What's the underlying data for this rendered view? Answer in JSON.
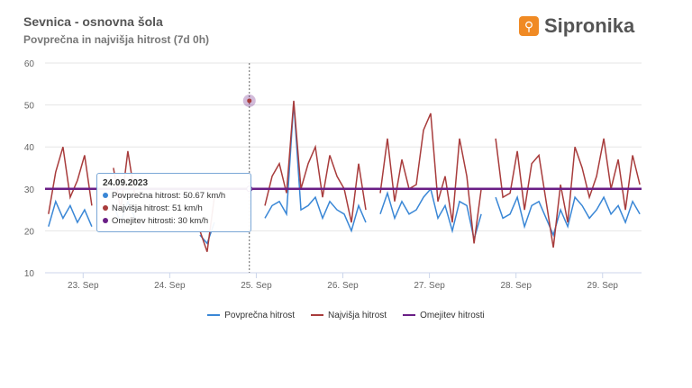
{
  "header": {
    "title": "Sevnica - osnovna šola",
    "subtitle": "Povprečna in najvišja hitrost (7d 0h)",
    "brand": "Sipronika"
  },
  "tooltip": {
    "date": "24.09.2023",
    "avg": "Povprečna hitrost: 50.67 km/h",
    "max": "Najvišja hitrost: 51 km/h",
    "limit": "Omejitev hitrosti: 30 km/h"
  },
  "chart_data": {
    "type": "line",
    "title": "Povprečna in najvišja hitrost (7d 0h)",
    "xlabel": "",
    "ylabel": "",
    "ylim": [
      10,
      60
    ],
    "yticks": [
      10,
      20,
      30,
      40,
      50,
      60
    ],
    "xlim": [
      22.56,
      29.45
    ],
    "xticks": [
      {
        "v": 23,
        "label": "23. Sep"
      },
      {
        "v": 24,
        "label": "24. Sep"
      },
      {
        "v": 25,
        "label": "25. Sep"
      },
      {
        "v": 26,
        "label": "26. Sep"
      },
      {
        "v": 27,
        "label": "27. Sep"
      },
      {
        "v": 28,
        "label": "28. Sep"
      },
      {
        "v": 29,
        "label": "29. Sep"
      }
    ],
    "x_start": 22.6,
    "x_step_days": 0.0833,
    "series": [
      {
        "name": "Povprečna hitrost",
        "color": "#3a87d6",
        "values": [
          21,
          27,
          23,
          26,
          22,
          25,
          21,
          null,
          null,
          26,
          22,
          27,
          23,
          null,
          null,
          null,
          null,
          null,
          null,
          null,
          null,
          19,
          17,
          22,
          null,
          null,
          null,
          null,
          null,
          null,
          23,
          26,
          27,
          24,
          50.67,
          25,
          26,
          28,
          23,
          27,
          25,
          24,
          20,
          26,
          22,
          null,
          24,
          29,
          23,
          27,
          24,
          25,
          28,
          30,
          23,
          26,
          20,
          27,
          26,
          18,
          24,
          null,
          28,
          23,
          24,
          28,
          21,
          26,
          27,
          23,
          19,
          25,
          21,
          28,
          26,
          23,
          25,
          28,
          24,
          26,
          22,
          27,
          24
        ]
      },
      {
        "name": "Najvišja hitrost",
        "color": "#a83c3c",
        "values": [
          24,
          34,
          40,
          28,
          32,
          38,
          26,
          null,
          null,
          35,
          25,
          39,
          28,
          null,
          null,
          null,
          null,
          null,
          null,
          null,
          null,
          20,
          15,
          28,
          null,
          null,
          null,
          null,
          null,
          null,
          26,
          33,
          36,
          29,
          51,
          30,
          36,
          40,
          28,
          38,
          33,
          30,
          22,
          36,
          25,
          null,
          29,
          42,
          27,
          37,
          30,
          31,
          44,
          48,
          27,
          33,
          22,
          42,
          33,
          17,
          30,
          null,
          42,
          28,
          29,
          39,
          25,
          36,
          38,
          27,
          16,
          31,
          22,
          40,
          35,
          28,
          33,
          42,
          30,
          37,
          25,
          38,
          31
        ]
      },
      {
        "name": "Omejitev hitrosti",
        "color": "#6a1f86",
        "values": [
          30
        ]
      }
    ],
    "legend": "bottom-center",
    "crosshair_x": 24.92
  }
}
